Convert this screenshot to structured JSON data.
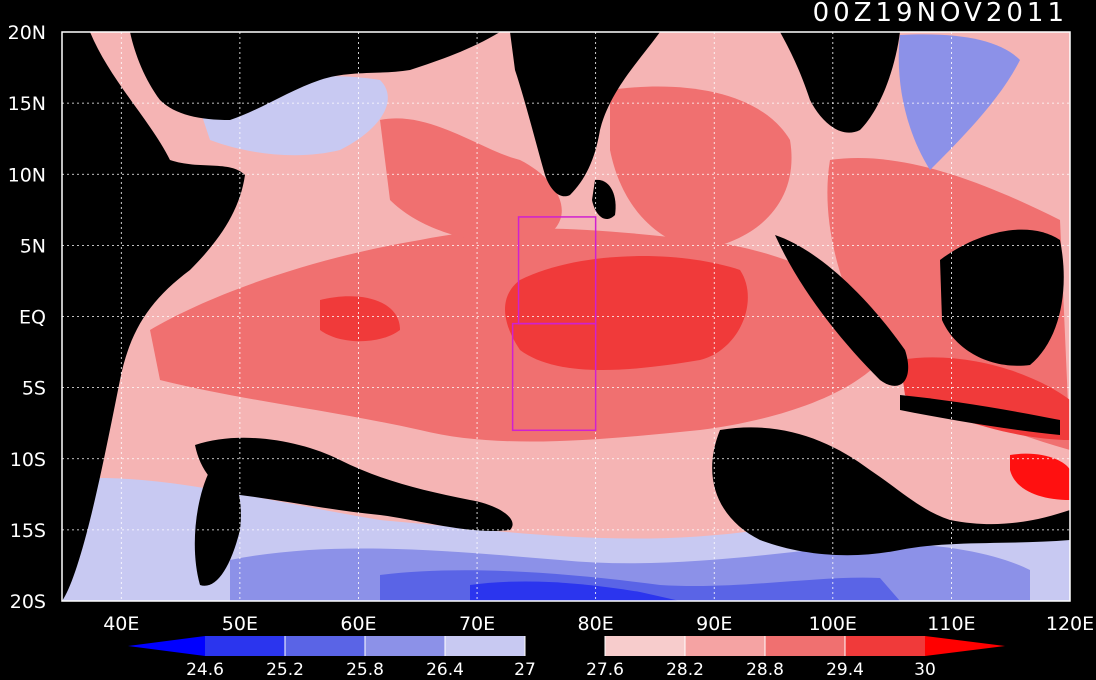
{
  "map": {
    "title": "00Z19NOV2011",
    "lon_labels": [
      "40E",
      "50E",
      "60E",
      "70E",
      "80E",
      "90E",
      "100E",
      "110E",
      "120E"
    ],
    "lat_labels": [
      "20N",
      "15N",
      "10N",
      "5N",
      "EQ",
      "5S",
      "10S",
      "15S",
      "20S"
    ],
    "lon_range": [
      35,
      120
    ],
    "lat_range": [
      -20,
      20
    ],
    "grid": true,
    "boxes": [
      {
        "name": "box-north",
        "lon": [
          73.5,
          80
        ],
        "lat": [
          -0.5,
          7
        ]
      },
      {
        "name": "box-south",
        "lon": [
          73,
          80
        ],
        "lat": [
          -8,
          -0.5
        ]
      }
    ]
  },
  "colorbar": {
    "labels": [
      "24.6",
      "25.2",
      "25.8",
      "26.4",
      "27",
      "27.6",
      "28.2",
      "28.8",
      "29.4",
      "30"
    ],
    "colors": [
      "#0000ff",
      "#2b35ee",
      "#5a64e6",
      "#8c91e8",
      "#c8c9f2",
      "#000000",
      "#f7cccc",
      "#f5a3a3",
      "#f07070",
      "#f03a3a",
      "#ff0000"
    ]
  },
  "legend_colors": {
    "land": "#000000",
    "cool": "#3236e6",
    "warm": "#f03232",
    "box": "#d020d0"
  }
}
